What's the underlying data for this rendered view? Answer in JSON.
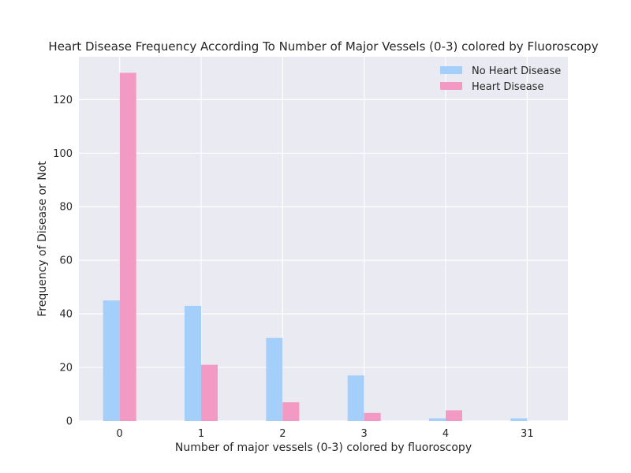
{
  "chart_data": {
    "type": "bar",
    "title": "Heart Disease Frequency According To Number of Major Vessels (0-3) colored by Fluoroscopy",
    "xlabel": "Number of major vessels (0-3) colored by fluoroscopy",
    "ylabel": "Frequency of Disease or Not",
    "categories": [
      "0",
      "1",
      "2",
      "3",
      "4",
      "31"
    ],
    "series": [
      {
        "name": "No Heart Disease",
        "color": "#a4cffa",
        "values": [
          45,
          43,
          31,
          17,
          1,
          1
        ]
      },
      {
        "name": "Heart Disease",
        "color": "#f39ac4",
        "values": [
          130,
          21,
          7,
          3,
          4,
          0
        ]
      }
    ],
    "ylim": [
      0,
      136
    ],
    "yticks": [
      0,
      20,
      40,
      60,
      80,
      100,
      120
    ],
    "grid": true,
    "legend_position": "top-right",
    "background_color": "#eaeaf2"
  }
}
